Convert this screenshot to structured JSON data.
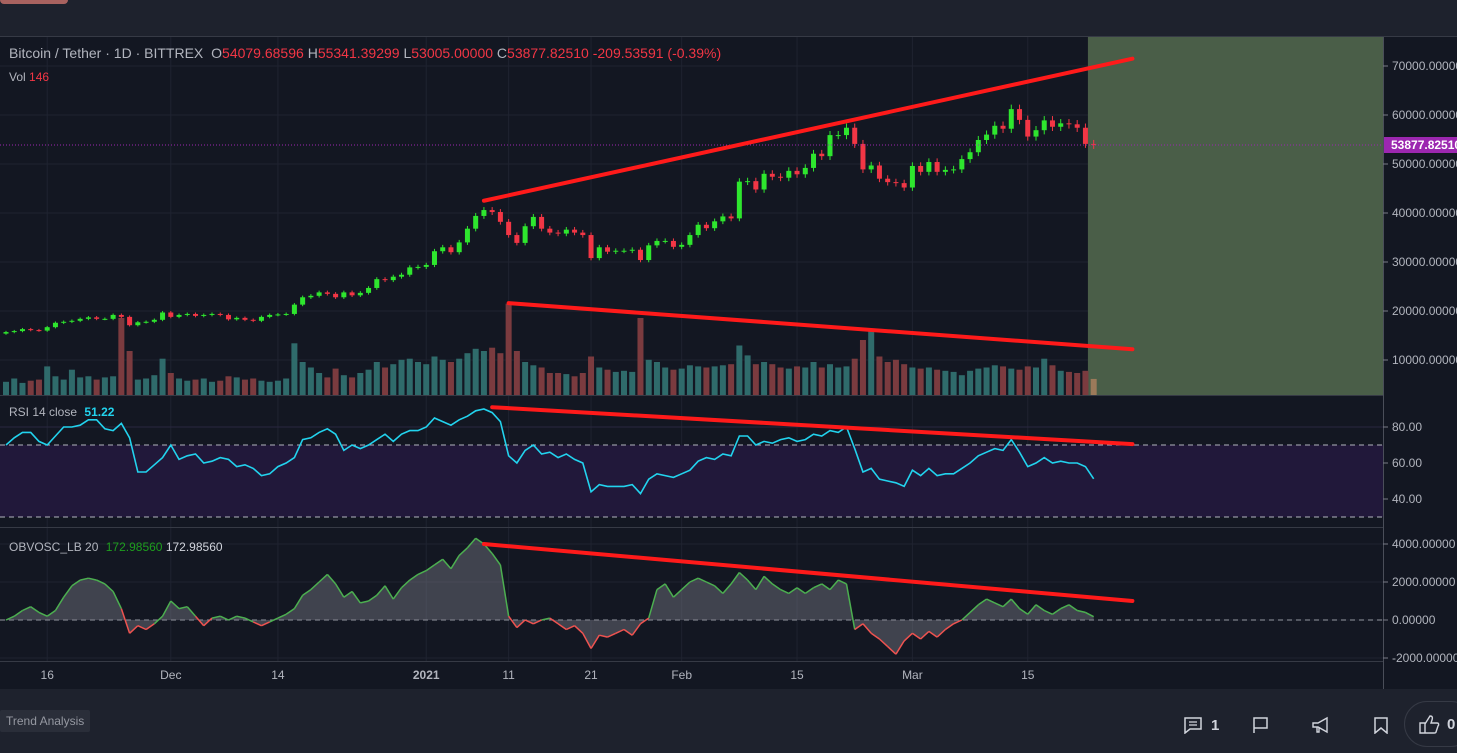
{
  "header": {
    "symbol": "Bitcoin / Tether · 1D · BITTREX",
    "o_label": "O",
    "o": "54079.68596",
    "h_label": "H",
    "h": "55341.39299",
    "l_label": "L",
    "l": "53005.00000",
    "c_label": "C",
    "c": "53877.82510",
    "change": "-209.53591 (-0.39%)",
    "vol_label": "Vol",
    "vol": "146"
  },
  "rsi_legend": {
    "label": "RSI 14 close",
    "value": "51.22"
  },
  "obv_legend": {
    "label": "OBVOSC_LB 20",
    "value1": "172.98560",
    "value2": "172.98560"
  },
  "bottom": {
    "chip": "Trend Analysis",
    "comments": "1",
    "likes": "0"
  },
  "colors": {
    "up": "#2ee62e",
    "down": "#f23645",
    "vol_up": "#2f6b6b",
    "vol_down": "#7b3b3f",
    "rsi": "#22d3ee",
    "trend": "#ff1a1a",
    "zone": "#4a5e48",
    "price_label": "#9c27b0"
  },
  "chart_data": {
    "type": "candlestick",
    "current_price": 53877.8251,
    "current_price_label": "53877.82510",
    "price_axis": {
      "ticks": [
        10000,
        20000,
        30000,
        40000,
        50000,
        60000,
        70000
      ],
      "labels": [
        "10000.00000",
        "20000.00000",
        "30000.00000",
        "40000.00000",
        "50000.00000",
        "60000.00000",
        "70000.00000"
      ]
    },
    "time_axis": [
      {
        "i": 5,
        "label": "16"
      },
      {
        "i": 20,
        "label": "Dec"
      },
      {
        "i": 33,
        "label": "14"
      },
      {
        "i": 51,
        "label": "2021"
      },
      {
        "i": 61,
        "label": "11"
      },
      {
        "i": 71,
        "label": "21"
      },
      {
        "i": 82,
        "label": "Feb"
      },
      {
        "i": 96,
        "label": "15"
      },
      {
        "i": 110,
        "label": "Mar"
      },
      {
        "i": 124,
        "label": "15"
      }
    ],
    "closes_k": [
      15.7,
      15.9,
      16.3,
      16.1,
      16.0,
      16.7,
      17.6,
      17.8,
      18.0,
      18.4,
      18.7,
      18.4,
      18.4,
      19.2,
      18.8,
      17.1,
      17.7,
      17.8,
      18.2,
      19.7,
      18.8,
      19.2,
      19.4,
      19.0,
      19.2,
      19.4,
      19.2,
      18.3,
      18.6,
      18.2,
      18.0,
      18.8,
      19.2,
      19.3,
      19.4,
      21.3,
      22.8,
      23.1,
      23.8,
      23.5,
      22.8,
      23.8,
      23.2,
      23.7,
      24.7,
      26.5,
      26.3,
      27.0,
      27.4,
      28.9,
      29.0,
      29.4,
      32.2,
      33.0,
      32.0,
      34.0,
      36.8,
      39.4,
      40.6,
      40.2,
      38.2,
      35.5,
      33.9,
      37.3,
      39.2,
      36.8,
      36.0,
      35.8,
      36.6,
      36.0,
      35.5,
      30.8,
      33.0,
      32.1,
      32.3,
      32.3,
      32.5,
      30.4,
      33.4,
      34.3,
      34.3,
      33.1,
      33.5,
      35.5,
      37.6,
      36.9,
      38.3,
      39.3,
      38.9,
      46.4,
      46.5,
      44.8,
      48.0,
      47.4,
      47.2,
      48.6,
      47.9,
      49.2,
      52.1,
      51.6,
      55.9,
      55.9,
      57.4,
      54.1,
      48.9,
      49.7,
      47.0,
      46.3,
      46.1,
      45.2,
      49.6,
      48.4,
      50.4,
      48.4,
      48.8,
      48.9,
      51.0,
      52.4,
      54.9,
      56.0,
      57.8,
      57.2,
      61.2,
      59.0,
      55.6,
      56.9,
      58.9,
      57.6,
      58.3,
      58.1,
      57.4,
      54.1,
      53.88
    ],
    "volumes": [
      120,
      150,
      110,
      130,
      140,
      260,
      170,
      140,
      230,
      160,
      170,
      140,
      160,
      170,
      700,
      400,
      140,
      150,
      180,
      330,
      200,
      150,
      130,
      140,
      150,
      120,
      130,
      170,
      160,
      140,
      150,
      130,
      120,
      130,
      150,
      470,
      300,
      250,
      200,
      160,
      240,
      180,
      160,
      200,
      230,
      300,
      250,
      280,
      320,
      330,
      300,
      280,
      350,
      320,
      300,
      330,
      380,
      420,
      400,
      430,
      380,
      830,
      400,
      300,
      270,
      250,
      200,
      200,
      190,
      170,
      200,
      350,
      250,
      230,
      210,
      220,
      210,
      700,
      320,
      300,
      250,
      230,
      240,
      270,
      260,
      250,
      260,
      270,
      280,
      450,
      360,
      280,
      300,
      280,
      250,
      240,
      260,
      250,
      300,
      250,
      280,
      250,
      260,
      330,
      500,
      600,
      350,
      300,
      320,
      280,
      250,
      240,
      250,
      230,
      220,
      210,
      180,
      220,
      240,
      250,
      270,
      260,
      240,
      230,
      260,
      250,
      330,
      270,
      220,
      210,
      200,
      220,
      146
    ],
    "rsi": {
      "ticks": [
        40,
        60,
        80
      ],
      "labels": [
        "40.00",
        "60.00",
        "80.00"
      ],
      "bands": [
        30,
        70
      ],
      "values": [
        70,
        74,
        77,
        77,
        72,
        70,
        75,
        80,
        80,
        81,
        84,
        84,
        79,
        78,
        82,
        74,
        55,
        55,
        59,
        63,
        70,
        62,
        64,
        65,
        60,
        61,
        63,
        62,
        58,
        59,
        57,
        53,
        54,
        58,
        60,
        63,
        73,
        74,
        77,
        79,
        76,
        67,
        70,
        68,
        70,
        73,
        76,
        72,
        76,
        78,
        78,
        80,
        85,
        83,
        81,
        84,
        86,
        89,
        90,
        88,
        83,
        64,
        60,
        67,
        70,
        65,
        66,
        63,
        65,
        62,
        60,
        44,
        48,
        47,
        47,
        47,
        48,
        43,
        51,
        54,
        53,
        52,
        54,
        56,
        61,
        63,
        62,
        65,
        64,
        75,
        75,
        70,
        72,
        71,
        73,
        74,
        72,
        73,
        76,
        75,
        78,
        77,
        80,
        68,
        55,
        57,
        51,
        50,
        49,
        47,
        56,
        53,
        57,
        53,
        54,
        54,
        57,
        60,
        64,
        66,
        68,
        67,
        73,
        66,
        58,
        60,
        63,
        60,
        61,
        60,
        60,
        58,
        51.22
      ]
    },
    "obv_osc": {
      "ticks": [
        -2000,
        0,
        2000,
        4000
      ],
      "labels": [
        "-2000.00000",
        "0.00000",
        "2000.00000",
        "4000.00000"
      ],
      "values": [
        0,
        200,
        500,
        700,
        400,
        200,
        500,
        1200,
        1800,
        2100,
        2200,
        2100,
        1900,
        1500,
        600,
        -700,
        -300,
        -500,
        -200,
        200,
        1000,
        600,
        700,
        200,
        -300,
        100,
        200,
        0,
        200,
        100,
        -100,
        -300,
        -100,
        100,
        300,
        600,
        1300,
        1600,
        2000,
        2400,
        1900,
        1200,
        1500,
        900,
        1000,
        1300,
        1800,
        1100,
        1700,
        2100,
        2400,
        2600,
        2900,
        3200,
        2700,
        3400,
        3800,
        4300,
        4000,
        3500,
        2900,
        200,
        -400,
        0,
        -200,
        0,
        100,
        -200,
        -500,
        -300,
        -700,
        -1500,
        -800,
        -900,
        -700,
        -500,
        -800,
        -200,
        100,
        1600,
        1900,
        1200,
        1600,
        2000,
        2200,
        2000,
        1800,
        1400,
        1900,
        2500,
        2100,
        1600,
        2300,
        1900,
        1600,
        1400,
        1700,
        1400,
        1700,
        1900,
        1600,
        2100,
        1900,
        -500,
        -200,
        -700,
        -1000,
        -1400,
        -1800,
        -1100,
        -700,
        -1000,
        -600,
        -900,
        -500,
        -200,
        0,
        400,
        800,
        1100,
        900,
        700,
        1100,
        600,
        300,
        800,
        500,
        300,
        600,
        800,
        500,
        400,
        173
      ]
    },
    "trendlines": [
      {
        "pane": "price",
        "from": [
          58,
          42500
        ],
        "to": [
          136.7,
          71500
        ]
      },
      {
        "pane": "price",
        "from": [
          61,
          21600
        ],
        "to": [
          136.7,
          12200
        ]
      },
      {
        "pane": "rsi",
        "from": [
          59,
          91
        ],
        "to": [
          136.7,
          70.5
        ]
      },
      {
        "pane": "obv",
        "from": [
          58,
          4000
        ],
        "to": [
          136.7,
          1000
        ]
      }
    ],
    "zone_start_index": 131.3
  }
}
